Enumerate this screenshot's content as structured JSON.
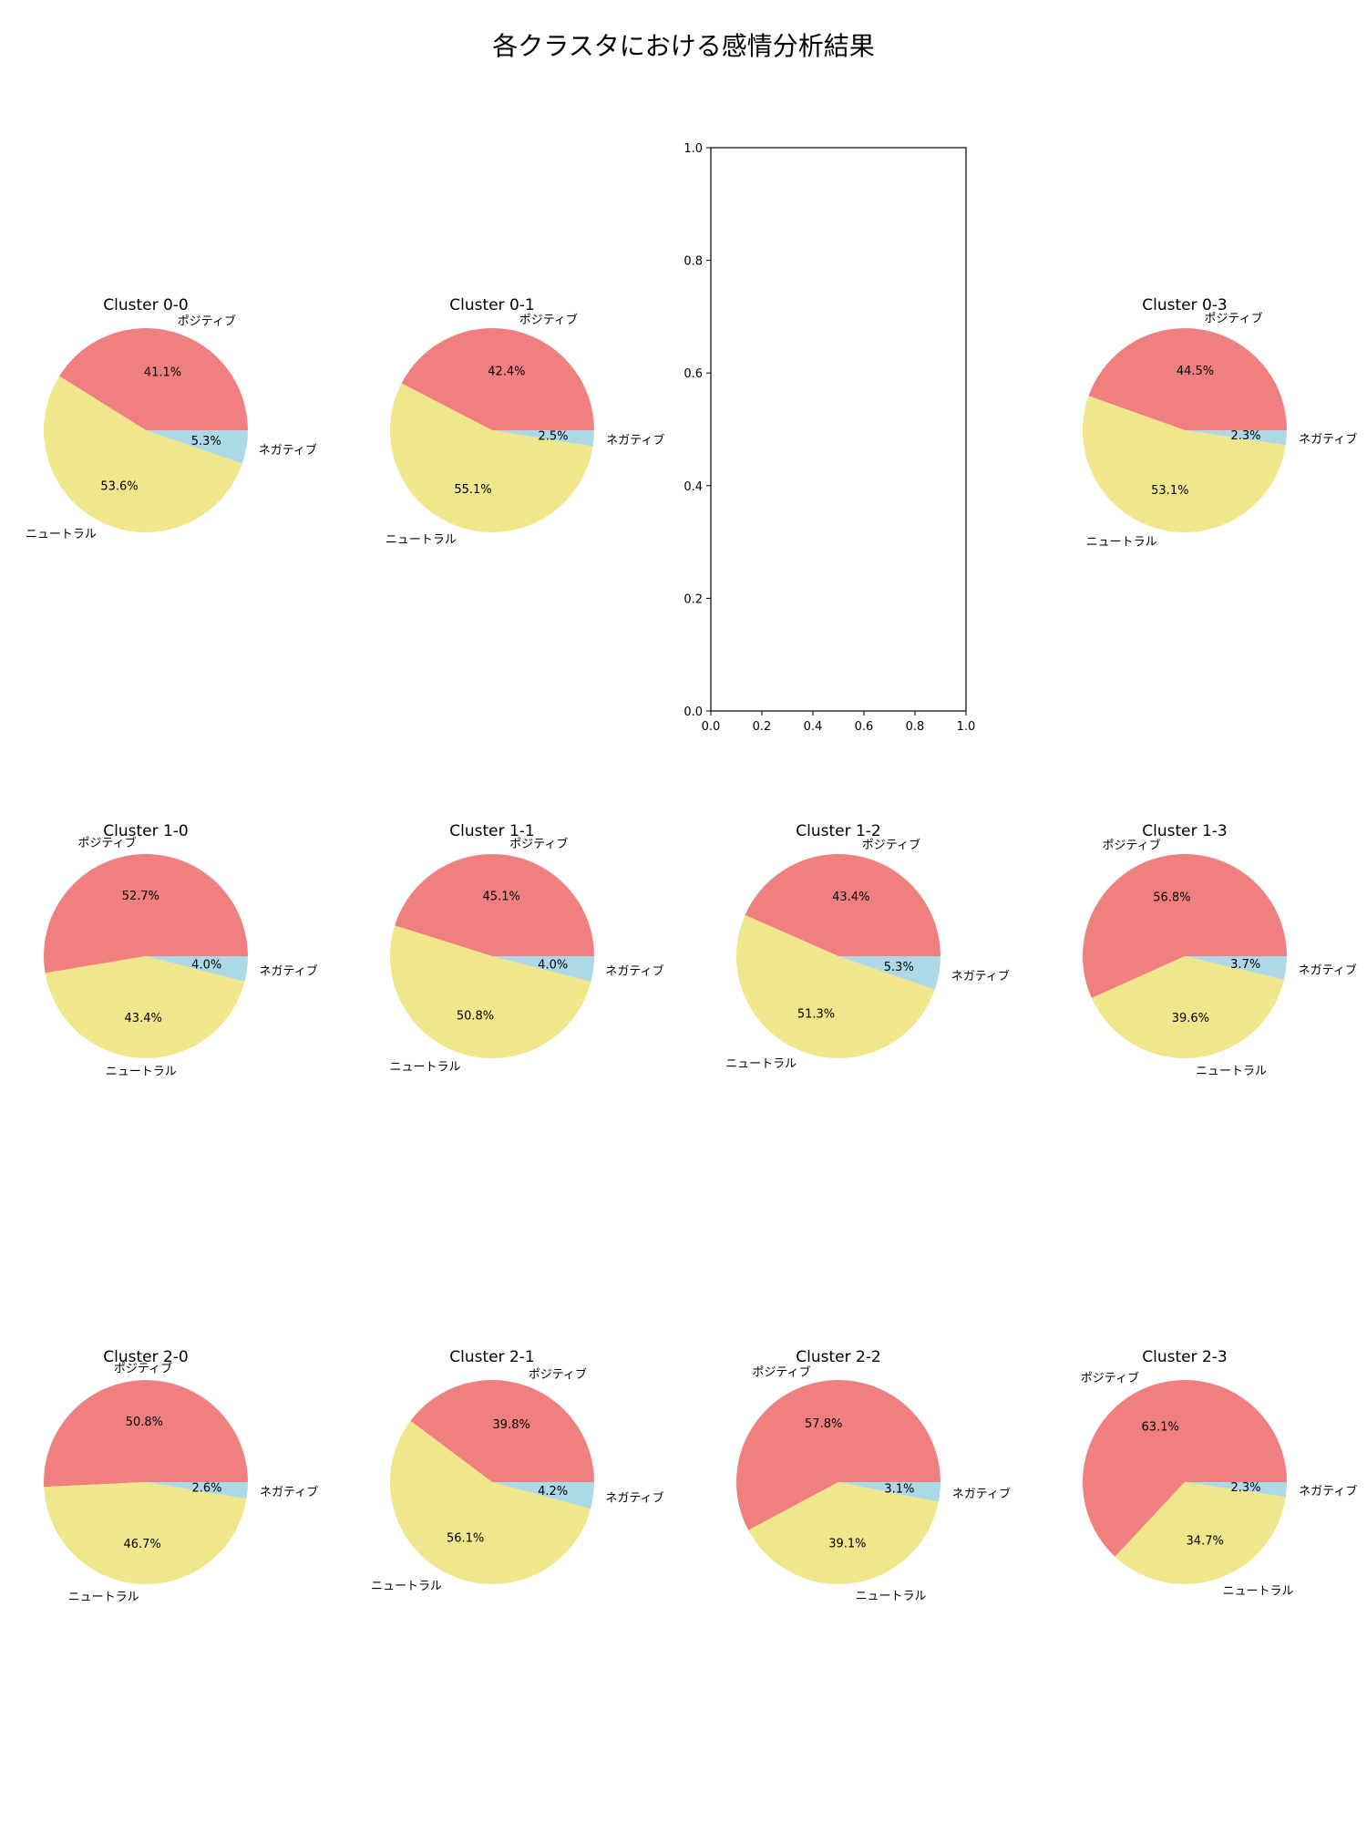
{
  "figure": {
    "title": "各クラスタにおける感情分析結果"
  },
  "colors": {
    "ポジティブ": "#f08080",
    "ニュートラル": "#f0e68c",
    "ネガティブ": "#add8e6"
  },
  "chart_data": [
    {
      "type": "pie",
      "title": "Cluster 0-0",
      "labels": [
        "ポジティブ",
        "ネガティブ",
        "ニュートラル"
      ],
      "values": [
        41.1,
        5.3,
        53.6
      ],
      "autopct": [
        "41.1%",
        "5.3%",
        "53.6%"
      ]
    },
    {
      "type": "pie",
      "title": "Cluster 0-1",
      "labels": [
        "ポジティブ",
        "ネガティブ",
        "ニュートラル"
      ],
      "values": [
        42.4,
        2.5,
        55.1
      ],
      "autopct": [
        "42.4%",
        "2.5%",
        "55.1%"
      ]
    },
    {
      "type": "empty_axes",
      "xlim": [
        0,
        1
      ],
      "ylim": [
        0,
        1
      ],
      "xticks": [
        "0.0",
        "0.2",
        "0.4",
        "0.6",
        "0.8",
        "1.0"
      ],
      "yticks": [
        "0.0",
        "0.2",
        "0.4",
        "0.6",
        "0.8",
        "1.0"
      ]
    },
    {
      "type": "pie",
      "title": "Cluster 0-3",
      "labels": [
        "ポジティブ",
        "ネガティブ",
        "ニュートラル"
      ],
      "values": [
        44.5,
        2.3,
        53.1
      ],
      "autopct": [
        "44.5%",
        "2.3%",
        "53.1%"
      ]
    },
    {
      "type": "pie",
      "title": "Cluster 1-0",
      "labels": [
        "ポジティブ",
        "ネガティブ",
        "ニュートラル"
      ],
      "values": [
        52.7,
        4.0,
        43.4
      ],
      "autopct": [
        "52.7%",
        "4.0%",
        "43.4%"
      ]
    },
    {
      "type": "pie",
      "title": "Cluster 1-1",
      "labels": [
        "ポジティブ",
        "ネガティブ",
        "ニュートラル"
      ],
      "values": [
        45.1,
        4.0,
        50.8
      ],
      "autopct": [
        "45.1%",
        "4.0%",
        "50.8%"
      ]
    },
    {
      "type": "pie",
      "title": "Cluster 1-2",
      "labels": [
        "ポジティブ",
        "ネガティブ",
        "ニュートラル"
      ],
      "values": [
        43.4,
        5.3,
        51.3
      ],
      "autopct": [
        "43.4%",
        "5.3%",
        "51.3%"
      ]
    },
    {
      "type": "pie",
      "title": "Cluster 1-3",
      "labels": [
        "ポジティブ",
        "ネガティブ",
        "ニュートラル"
      ],
      "values": [
        56.8,
        3.7,
        39.6
      ],
      "autopct": [
        "56.8%",
        "3.7%",
        "39.6%"
      ]
    },
    {
      "type": "pie",
      "title": "Cluster 2-0",
      "labels": [
        "ポジティブ",
        "ネガティブ",
        "ニュートラル"
      ],
      "values": [
        50.8,
        2.6,
        46.7
      ],
      "autopct": [
        "50.8%",
        "2.6%",
        "46.7%"
      ]
    },
    {
      "type": "pie",
      "title": "Cluster 2-1",
      "labels": [
        "ポジティブ",
        "ネガティブ",
        "ニュートラル"
      ],
      "values": [
        39.8,
        4.2,
        56.1
      ],
      "autopct": [
        "39.8%",
        "4.2%",
        "56.1%"
      ]
    },
    {
      "type": "pie",
      "title": "Cluster 2-2",
      "labels": [
        "ポジティブ",
        "ネガティブ",
        "ニュートラル"
      ],
      "values": [
        57.8,
        3.1,
        39.1
      ],
      "autopct": [
        "57.8%",
        "3.1%",
        "39.1%"
      ]
    },
    {
      "type": "pie",
      "title": "Cluster 2-3",
      "labels": [
        "ポジティブ",
        "ネガティブ",
        "ニュートラル"
      ],
      "values": [
        63.1,
        2.3,
        34.7
      ],
      "autopct": [
        "63.1%",
        "2.3%",
        "34.7%"
      ]
    }
  ]
}
